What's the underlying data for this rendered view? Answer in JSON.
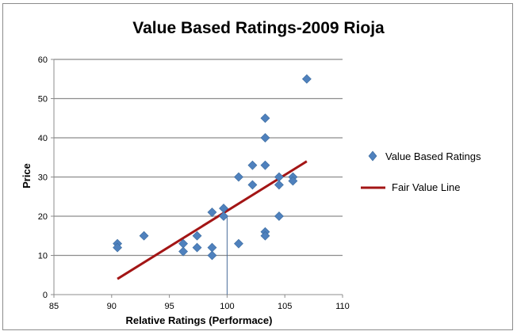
{
  "chart_data": {
    "type": "scatter",
    "title": "Value Based Ratings-2009 Rioja",
    "xlabel": "Relative Ratings (Performace)",
    "ylabel": "Price",
    "xlim": [
      85,
      110
    ],
    "ylim": [
      0,
      60
    ],
    "x_ticks": [
      "85",
      "90",
      "95",
      "100",
      "105",
      "110"
    ],
    "y_ticks": [
      "0",
      "10",
      "20",
      "30",
      "40",
      "50",
      "60"
    ],
    "grid": "horizontal",
    "legend": "right",
    "series": [
      {
        "name": "Value Based Ratings",
        "kind": "scatter",
        "color": "#4f81bd",
        "marker": "diamond",
        "points": [
          [
            90.5,
            13
          ],
          [
            90.5,
            12
          ],
          [
            92.8,
            15
          ],
          [
            96.2,
            13
          ],
          [
            96.2,
            11
          ],
          [
            97.4,
            15
          ],
          [
            97.4,
            12
          ],
          [
            98.7,
            21
          ],
          [
            98.7,
            12
          ],
          [
            98.7,
            10
          ],
          [
            99.7,
            22
          ],
          [
            99.7,
            20
          ],
          [
            101.0,
            30
          ],
          [
            101.0,
            13
          ],
          [
            102.2,
            33
          ],
          [
            102.2,
            28
          ],
          [
            103.3,
            45
          ],
          [
            103.3,
            40
          ],
          [
            103.3,
            33
          ],
          [
            103.3,
            16
          ],
          [
            103.3,
            15
          ],
          [
            104.5,
            30
          ],
          [
            104.5,
            28
          ],
          [
            104.5,
            20
          ],
          [
            105.7,
            30
          ],
          [
            105.7,
            29
          ],
          [
            106.9,
            55
          ]
        ]
      },
      {
        "name": "Fair Value Line",
        "kind": "line",
        "color": "#a31515",
        "points": [
          [
            90.5,
            4
          ],
          [
            106.9,
            34
          ]
        ]
      }
    ]
  }
}
